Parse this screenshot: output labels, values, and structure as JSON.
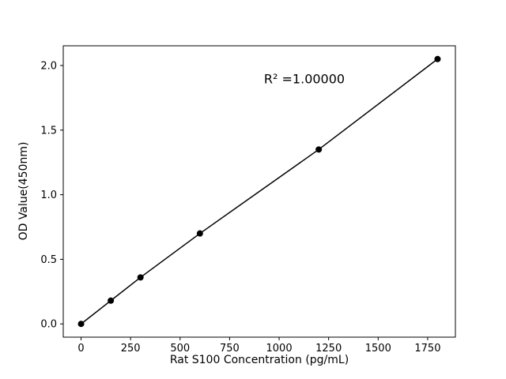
{
  "chart_data": {
    "type": "scatter",
    "x": [
      0,
      150,
      300,
      600,
      1200,
      1800
    ],
    "y": [
      0.0,
      0.18,
      0.36,
      0.7,
      1.35,
      2.05
    ],
    "xlabel": "Rat S100 Concentration (pg/mL)",
    "ylabel": "OD Value(450nm)",
    "annotation": "R² =1.00000",
    "xticks": [
      0,
      250,
      500,
      750,
      1000,
      1250,
      1500,
      1750
    ],
    "yticks": [
      0.0,
      0.5,
      1.0,
      1.5,
      2.0
    ],
    "xlim": [
      -90,
      1890
    ],
    "ylim": [
      -0.1025,
      2.1525
    ],
    "line_color": "#000000",
    "marker_color": "#000000",
    "axis_color": "#000000",
    "background": "#ffffff",
    "legend": "none",
    "grid": false
  }
}
